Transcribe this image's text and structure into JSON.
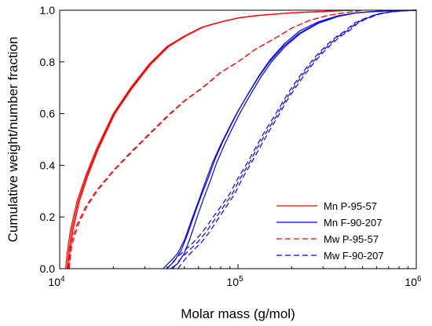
{
  "chart_data": {
    "type": "line",
    "title": "",
    "xlabel": "Molar mass (g/mol)",
    "ylabel": "Cumulative weight/number fraction",
    "xscale": "log",
    "xlim": [
      10000,
      1000000
    ],
    "ylim": [
      0,
      1
    ],
    "xticks": [
      {
        "value": 10000,
        "base": "10",
        "exp": "4"
      },
      {
        "value": 100000,
        "base": "10",
        "exp": "5"
      },
      {
        "value": 1000000,
        "base": "10",
        "exp": "6"
      }
    ],
    "yticks": [
      "0.0",
      "0.2",
      "0.4",
      "0.6",
      "0.8",
      "1.0"
    ],
    "grid": false,
    "legend_position": "bottom-right",
    "colors": {
      "red": "#ff0000",
      "blue": "#0000ff"
    },
    "legend": [
      {
        "label": "Mn P-95-57",
        "color": "#ff0000",
        "dash": "solid"
      },
      {
        "label": "Mn F-90-207",
        "color": "#0000ff",
        "dash": "solid"
      },
      {
        "label": "Mw P-95-57",
        "color": "#ff0000",
        "dash": "dashed"
      },
      {
        "label": "Mw F-90-207",
        "color": "#0000ff",
        "dash": "dashed"
      }
    ],
    "series": [
      {
        "color": "#ff0000",
        "dash": "solid",
        "x": [
          10800,
          11000,
          11500,
          12500,
          14000,
          16000,
          20000,
          25000,
          31600,
          40000,
          50000,
          63000,
          80000,
          100000,
          130000,
          200000,
          300000,
          420000
        ],
        "y": [
          0,
          0.06,
          0.15,
          0.26,
          0.36,
          0.46,
          0.6,
          0.7,
          0.79,
          0.86,
          0.9,
          0.935,
          0.955,
          0.97,
          0.98,
          0.99,
          0.995,
          1.0
        ]
      },
      {
        "color": "#ff0000",
        "dash": "solid",
        "x": [
          11000,
          11200,
          11700,
          12700,
          14200,
          16200,
          20200,
          25300,
          32000,
          40500,
          50500,
          63500,
          80500,
          100000,
          130000,
          200000,
          300000,
          430000
        ],
        "y": [
          0,
          0.06,
          0.15,
          0.26,
          0.36,
          0.46,
          0.6,
          0.7,
          0.79,
          0.86,
          0.9,
          0.935,
          0.955,
          0.97,
          0.98,
          0.99,
          0.995,
          1.0
        ]
      },
      {
        "color": "#ff0000",
        "dash": "solid",
        "x": [
          11200,
          11400,
          11900,
          12900,
          14400,
          16400,
          20400,
          25600,
          32400,
          41000,
          51000,
          64000,
          81000,
          100000,
          130000,
          200000,
          300000,
          440000
        ],
        "y": [
          0,
          0.06,
          0.15,
          0.26,
          0.36,
          0.46,
          0.6,
          0.7,
          0.79,
          0.86,
          0.9,
          0.935,
          0.955,
          0.97,
          0.98,
          0.99,
          0.995,
          1.0
        ]
      },
      {
        "color": "#ff0000",
        "dash": "dashed",
        "x": [
          11100,
          11500,
          12500,
          14000,
          16000,
          20000,
          25000,
          31600,
          40000,
          50000,
          63000,
          80000,
          100000,
          126000,
          160000,
          200000,
          250000,
          320000,
          400000,
          500000
        ],
        "y": [
          0,
          0.09,
          0.17,
          0.24,
          0.3,
          0.38,
          0.45,
          0.52,
          0.59,
          0.65,
          0.7,
          0.76,
          0.8,
          0.85,
          0.89,
          0.93,
          0.96,
          0.98,
          0.99,
          1.0
        ]
      },
      {
        "color": "#ff0000",
        "dash": "dashed",
        "x": [
          11300,
          11700,
          12700,
          14200,
          16200,
          20200,
          25300,
          32000,
          40500,
          50500,
          63500,
          80500,
          100000,
          126000,
          160000,
          200000,
          250000,
          320000,
          400000,
          500000
        ],
        "y": [
          0,
          0.09,
          0.17,
          0.24,
          0.3,
          0.38,
          0.45,
          0.52,
          0.59,
          0.65,
          0.7,
          0.76,
          0.8,
          0.85,
          0.89,
          0.93,
          0.96,
          0.98,
          0.99,
          1.0
        ]
      },
      {
        "color": "#0000ff",
        "dash": "solid",
        "x": [
          38000,
          42000,
          46000,
          50000,
          55000,
          60000,
          66000,
          72000,
          80000,
          90000,
          100000,
          115000,
          130000,
          150000,
          180000,
          220000,
          280000,
          360000,
          460000,
          600000,
          800000,
          1000000
        ],
        "y": [
          0,
          0.03,
          0.06,
          0.11,
          0.19,
          0.26,
          0.34,
          0.41,
          0.48,
          0.55,
          0.61,
          0.68,
          0.74,
          0.8,
          0.86,
          0.91,
          0.95,
          0.975,
          0.99,
          0.995,
          0.999,
          1.0
        ]
      },
      {
        "color": "#0000ff",
        "dash": "solid",
        "x": [
          40000,
          44000,
          48000,
          52000,
          57000,
          62000,
          68000,
          74000,
          82000,
          92000,
          102000,
          117000,
          132000,
          152000,
          182000,
          222000,
          282000,
          362000,
          462000,
          600000,
          800000,
          1000000
        ],
        "y": [
          0,
          0.03,
          0.07,
          0.13,
          0.21,
          0.28,
          0.35,
          0.42,
          0.49,
          0.56,
          0.62,
          0.69,
          0.75,
          0.81,
          0.87,
          0.92,
          0.955,
          0.978,
          0.99,
          0.996,
          0.999,
          1.0
        ]
      },
      {
        "color": "#0000ff",
        "dash": "solid",
        "x": [
          42000,
          46000,
          50000,
          54000,
          59000,
          64000,
          70000,
          76000,
          84000,
          94000,
          104000,
          119000,
          134000,
          154000,
          184000,
          224000,
          284000,
          364000,
          464000,
          600000,
          800000,
          1000000
        ],
        "y": [
          0,
          0.02,
          0.06,
          0.12,
          0.2,
          0.27,
          0.34,
          0.41,
          0.48,
          0.55,
          0.61,
          0.68,
          0.74,
          0.8,
          0.86,
          0.91,
          0.95,
          0.976,
          0.99,
          0.996,
          0.999,
          1.0
        ]
      },
      {
        "color": "#0000ff",
        "dash": "dashed",
        "x": [
          40000,
          45000,
          50000,
          56000,
          63000,
          71000,
          80000,
          90000,
          100000,
          113000,
          126000,
          141000,
          160000,
          180000,
          200000,
          225000,
          250000,
          280000,
          320000,
          360000,
          400000,
          450000,
          500000,
          600000,
          700000,
          800000,
          1000000
        ],
        "y": [
          0,
          0.04,
          0.07,
          0.1,
          0.14,
          0.19,
          0.24,
          0.29,
          0.35,
          0.41,
          0.47,
          0.53,
          0.59,
          0.65,
          0.7,
          0.75,
          0.79,
          0.83,
          0.87,
          0.9,
          0.92,
          0.95,
          0.965,
          0.985,
          0.993,
          0.997,
          1.0
        ]
      },
      {
        "color": "#0000ff",
        "dash": "dashed",
        "x": [
          43000,
          48000,
          53000,
          59000,
          66000,
          74000,
          83000,
          93000,
          103000,
          116000,
          129000,
          145000,
          164000,
          184000,
          205000,
          230000,
          256000,
          287000,
          328000,
          368000,
          410000,
          460000,
          510000,
          610000,
          710000,
          810000,
          1000000
        ],
        "y": [
          0,
          0.04,
          0.07,
          0.1,
          0.14,
          0.19,
          0.24,
          0.29,
          0.35,
          0.41,
          0.47,
          0.53,
          0.59,
          0.65,
          0.7,
          0.75,
          0.79,
          0.83,
          0.87,
          0.9,
          0.92,
          0.95,
          0.965,
          0.985,
          0.993,
          0.997,
          1.0
        ]
      },
      {
        "color": "#0000ff",
        "dash": "dashed",
        "x": [
          46000,
          51000,
          56000,
          62000,
          69000,
          77000,
          86000,
          96000,
          106000,
          119000,
          133000,
          149000,
          168000,
          188000,
          210000,
          236000,
          262000,
          294000,
          336000,
          377000,
          420000,
          470000,
          520000,
          620000,
          720000,
          820000,
          1000000
        ],
        "y": [
          0,
          0.04,
          0.07,
          0.1,
          0.14,
          0.19,
          0.24,
          0.29,
          0.35,
          0.41,
          0.47,
          0.53,
          0.59,
          0.65,
          0.7,
          0.75,
          0.79,
          0.83,
          0.87,
          0.9,
          0.92,
          0.95,
          0.965,
          0.985,
          0.993,
          0.997,
          1.0
        ]
      }
    ]
  }
}
